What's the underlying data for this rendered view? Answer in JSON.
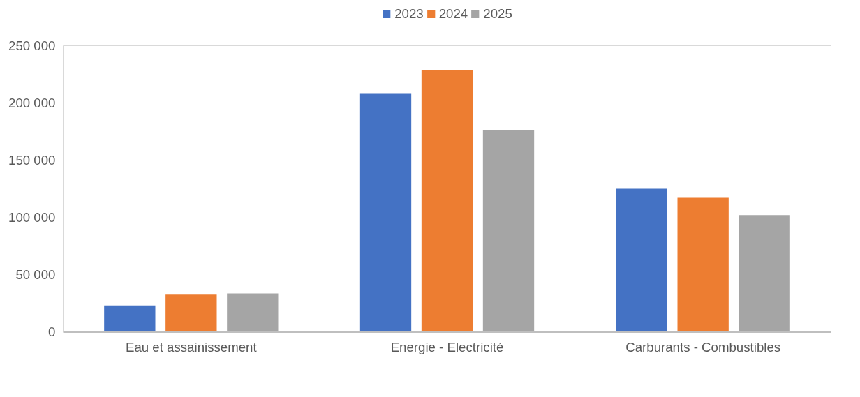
{
  "chart_data": {
    "type": "bar",
    "categories": [
      "Eau et assainissement",
      "Energie - Electricité",
      "Carburants - Combustibles"
    ],
    "series": [
      {
        "name": "2023",
        "color": "#4472c4",
        "values": [
          23000,
          208000,
          125000
        ]
      },
      {
        "name": "2024",
        "color": "#ed7d31",
        "values": [
          32500,
          229000,
          117000
        ]
      },
      {
        "name": "2025",
        "color": "#a5a5a5",
        "values": [
          33500,
          176000,
          102000
        ]
      }
    ],
    "ylim": [
      0,
      250000
    ],
    "yticks": [
      {
        "value": 0,
        "label": "0"
      },
      {
        "value": 50000,
        "label": "50 000"
      },
      {
        "value": 100000,
        "label": "100 000"
      },
      {
        "value": 150000,
        "label": "150 000"
      },
      {
        "value": 200000,
        "label": "200 000"
      },
      {
        "value": 250000,
        "label": "250 000"
      }
    ],
    "grid": false,
    "legend": "top"
  }
}
